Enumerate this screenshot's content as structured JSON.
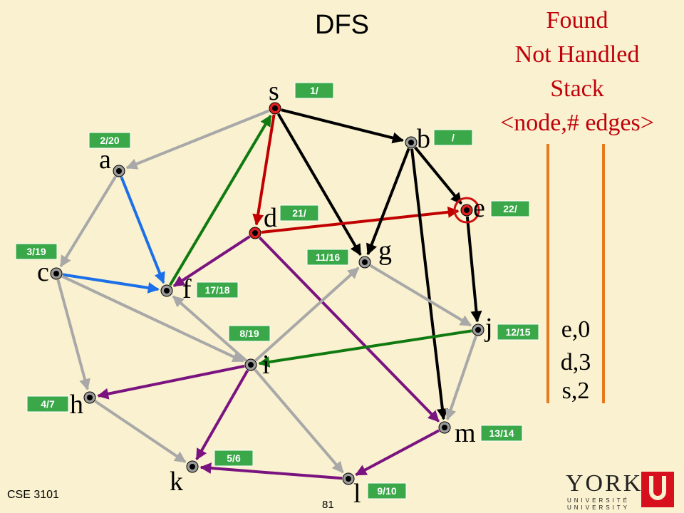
{
  "title": "DFS",
  "legend": {
    "line1": "Found",
    "line2": "Not Handled",
    "line3": "Stack",
    "line4": "<node,# edges>"
  },
  "colors": {
    "background": "#f9f1cf",
    "gray_edge": "#a8a8a8",
    "tree_red": "#c00000",
    "green": "#107a10",
    "blue": "#1b6fe8",
    "purple": "#7a1380",
    "black": "#000000",
    "label_box": "#3aa848",
    "orange": "#e87a1e"
  },
  "nodes": [
    {
      "id": "s",
      "label": "s",
      "time": "1/"
    },
    {
      "id": "a",
      "label": "a",
      "time": "2/20"
    },
    {
      "id": "b",
      "label": "b",
      "time": "/"
    },
    {
      "id": "c",
      "label": "c",
      "time": "3/19"
    },
    {
      "id": "d",
      "label": "d",
      "time": "21/"
    },
    {
      "id": "e",
      "label": "e",
      "time": "22/"
    },
    {
      "id": "f",
      "label": "f",
      "time": "17/18"
    },
    {
      "id": "g",
      "label": "g",
      "time": "11/16"
    },
    {
      "id": "h",
      "label": "h",
      "time": "4/7"
    },
    {
      "id": "i",
      "label": "i",
      "time": "8/19"
    },
    {
      "id": "j",
      "label": "j",
      "time": "12/15"
    },
    {
      "id": "k",
      "label": "k",
      "time": "5/6"
    },
    {
      "id": "l",
      "label": "l",
      "time": "9/10"
    },
    {
      "id": "m",
      "label": "m",
      "time": "13/14"
    }
  ],
  "edges": [
    {
      "from": "s",
      "to": "a",
      "color": "gray"
    },
    {
      "from": "s",
      "to": "b",
      "color": "black"
    },
    {
      "from": "s",
      "to": "g",
      "color": "black"
    },
    {
      "from": "s",
      "to": "d",
      "color": "red"
    },
    {
      "from": "a",
      "to": "c",
      "color": "gray"
    },
    {
      "from": "a",
      "to": "f",
      "color": "blue"
    },
    {
      "from": "c",
      "to": "f",
      "color": "blue"
    },
    {
      "from": "c",
      "to": "h",
      "color": "gray"
    },
    {
      "from": "c",
      "to": "i",
      "color": "gray"
    },
    {
      "from": "f",
      "to": "s",
      "color": "green"
    },
    {
      "from": "i",
      "to": "f",
      "color": "gray"
    },
    {
      "from": "d",
      "to": "f",
      "color": "purple"
    },
    {
      "from": "d",
      "to": "e",
      "color": "red"
    },
    {
      "from": "d",
      "to": "m",
      "color": "purple"
    },
    {
      "from": "b",
      "to": "g",
      "color": "black"
    },
    {
      "from": "b",
      "to": "e",
      "color": "black"
    },
    {
      "from": "b",
      "to": "m",
      "color": "black"
    },
    {
      "from": "e",
      "to": "j",
      "color": "black"
    },
    {
      "from": "g",
      "to": "j",
      "color": "gray"
    },
    {
      "from": "j",
      "to": "i",
      "color": "green"
    },
    {
      "from": "j",
      "to": "m",
      "color": "gray"
    },
    {
      "from": "i",
      "to": "g",
      "color": "gray"
    },
    {
      "from": "i",
      "to": "h",
      "color": "purple"
    },
    {
      "from": "i",
      "to": "k",
      "color": "purple"
    },
    {
      "from": "i",
      "to": "l",
      "color": "gray"
    },
    {
      "from": "h",
      "to": "k",
      "color": "gray"
    },
    {
      "from": "l",
      "to": "k",
      "color": "purple"
    },
    {
      "from": "m",
      "to": "l",
      "color": "purple"
    }
  ],
  "current_node": "e",
  "stack": [
    "e,0",
    "d,3",
    "s,2"
  ],
  "footer": {
    "course": "CSE 3101",
    "page": "81"
  },
  "logo": {
    "word": "YORK",
    "line1": "UNIVERSITÉ",
    "line2": "UNIVERSITY"
  }
}
